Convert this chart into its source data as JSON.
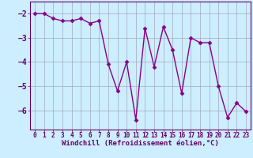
{
  "x": [
    0,
    1,
    2,
    3,
    4,
    5,
    6,
    7,
    8,
    9,
    10,
    11,
    12,
    13,
    14,
    15,
    16,
    17,
    18,
    19,
    20,
    21,
    22,
    23
  ],
  "y": [
    -2.0,
    -2.0,
    -2.2,
    -2.3,
    -2.3,
    -2.2,
    -2.4,
    -2.3,
    -4.1,
    -5.2,
    -4.0,
    -6.4,
    -2.6,
    -4.2,
    -2.55,
    -3.5,
    -5.3,
    -3.0,
    -3.2,
    -3.2,
    -5.0,
    -6.3,
    -5.7,
    -6.05
  ],
  "line_color": "#880088",
  "marker": "D",
  "markersize": 2.5,
  "linewidth": 1.0,
  "bg_color": "#cceeff",
  "grid_color": "#9999aa",
  "xlabel": "Windchill (Refroidissement éolien,°C)",
  "xlabel_fontsize": 6.5,
  "xlabel_color": "#660066",
  "tick_color": "#660066",
  "xtick_fontsize": 5.5,
  "ytick_fontsize": 7,
  "ylim": [
    -6.8,
    -1.5
  ],
  "xlim": [
    -0.5,
    23.5
  ],
  "yticks": [
    -2,
    -3,
    -4,
    -5,
    -6
  ],
  "xticks": [
    0,
    1,
    2,
    3,
    4,
    5,
    6,
    7,
    8,
    9,
    10,
    11,
    12,
    13,
    14,
    15,
    16,
    17,
    18,
    19,
    20,
    21,
    22,
    23
  ]
}
